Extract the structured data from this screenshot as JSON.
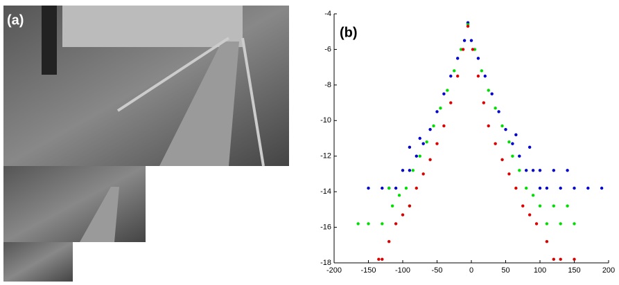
{
  "chart_data": {
    "type": "scatter",
    "photo_label": "(a)",
    "annotation": "(b)",
    "xlim": [
      -200,
      200
    ],
    "xticks": [
      -200,
      -150,
      -100,
      -50,
      0,
      50,
      100,
      150,
      200
    ],
    "ylim": [
      -18,
      -4
    ],
    "yticks": [
      -4,
      -6,
      -8,
      -10,
      -12,
      -14,
      -16,
      -18
    ],
    "series": [
      {
        "color": "#0000cc",
        "x": [
          -5,
          -10,
          0,
          -20,
          10,
          -30,
          20,
          -40,
          30,
          -50,
          40,
          -60,
          50,
          -70,
          60,
          -80,
          70,
          -90,
          80,
          -100,
          90,
          -110,
          100,
          -120,
          110,
          -130,
          130,
          -150,
          150,
          170,
          190,
          -90,
          85,
          -75,
          65,
          100,
          120,
          140
        ],
        "values": [
          -4.5,
          -5.5,
          -5.5,
          -6.5,
          -6.5,
          -7.5,
          -7.5,
          -8.5,
          -8.5,
          -9.5,
          -9.5,
          -10.5,
          -10.5,
          -11.3,
          -11.3,
          -12,
          -12,
          -12.8,
          -12.8,
          -12.8,
          -12.8,
          -13.8,
          -13.8,
          -13.8,
          -13.8,
          -13.8,
          -13.8,
          -13.8,
          -13.8,
          -13.8,
          -13.8,
          -11.5,
          -11.5,
          -11,
          -10.8,
          -12.8,
          -12.8,
          -12.8
        ]
      },
      {
        "color": "#00dd00",
        "x": [
          -5,
          -15,
          5,
          -25,
          15,
          -35,
          25,
          -45,
          35,
          -55,
          45,
          -65,
          55,
          -75,
          60,
          -85,
          70,
          -95,
          80,
          -105,
          90,
          -115,
          100,
          -90,
          120,
          -130,
          110,
          -150,
          130,
          -165,
          150,
          -120,
          140
        ],
        "values": [
          -4.6,
          -6,
          -6,
          -7.2,
          -7.2,
          -8.3,
          -8.3,
          -9.3,
          -9.3,
          -10.3,
          -10.3,
          -11.2,
          -11.2,
          -12,
          -12,
          -12.8,
          -12.8,
          -13.8,
          -13.8,
          -14.2,
          -14.2,
          -14.8,
          -14.8,
          -14.8,
          -14.8,
          -15.8,
          -15.8,
          -15.8,
          -15.8,
          -15.8,
          -15.8,
          -13.8,
          -14.8
        ]
      },
      {
        "color": "#dd0000",
        "x": [
          -5,
          -12,
          2,
          -20,
          10,
          -30,
          18,
          -40,
          25,
          -50,
          35,
          -60,
          45,
          -70,
          55,
          -80,
          65,
          -90,
          75,
          -100,
          85,
          -110,
          95,
          -120,
          110,
          -130,
          120,
          -135,
          130,
          150
        ],
        "values": [
          -4.7,
          -6,
          -6,
          -7.5,
          -7.5,
          -9,
          -9,
          -10.3,
          -10.3,
          -11.3,
          -11.3,
          -12.2,
          -12.2,
          -13,
          -13,
          -13.8,
          -13.8,
          -14.8,
          -14.8,
          -15.3,
          -15.3,
          -15.8,
          -15.8,
          -16.8,
          -16.8,
          -17.8,
          -17.8,
          -17.8,
          -17.8,
          -17.8
        ]
      }
    ]
  }
}
